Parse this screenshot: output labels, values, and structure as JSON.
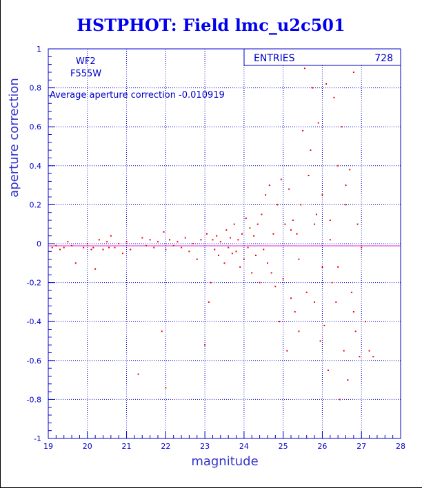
{
  "chart_data": {
    "type": "scatter",
    "title": "HSTPHOT: Field lmc_u2c501",
    "xlabel": "magnitude",
    "ylabel": "aperture correction",
    "xlim": [
      19,
      28
    ],
    "ylim": [
      -1,
      1
    ],
    "xticks": [
      "19",
      "20",
      "21",
      "22",
      "23",
      "24",
      "25",
      "26",
      "27",
      "28"
    ],
    "yticks": [
      "-1",
      "-0.8",
      "-0.6",
      "-0.4",
      "-0.2",
      "0",
      "0.2",
      "0.4",
      "0.6",
      "0.8",
      "1"
    ],
    "grid": true,
    "stats": {
      "label": "ENTRIES",
      "value": "728"
    },
    "annotations": {
      "camera": "WF2",
      "filter": "F555W",
      "average": "Average aperture correction -0.010919"
    },
    "reference_line_y": -0.0109,
    "colors": {
      "points": "#ee0000",
      "axes": "#0000cc",
      "grid": "#0000cc",
      "title": "#0000ee"
    },
    "points": [
      [
        19.1,
        -0.02
      ],
      [
        19.2,
        -0.01
      ],
      [
        19.3,
        -0.03
      ],
      [
        19.4,
        -0.02
      ],
      [
        19.5,
        0.01
      ],
      [
        19.6,
        -0.01
      ],
      [
        19.7,
        -0.1
      ],
      [
        19.9,
        -0.02
      ],
      [
        20.0,
        0.0
      ],
      [
        20.1,
        -0.03
      ],
      [
        20.15,
        -0.02
      ],
      [
        20.2,
        -0.13
      ],
      [
        20.3,
        0.02
      ],
      [
        20.4,
        -0.03
      ],
      [
        20.5,
        0.01
      ],
      [
        20.55,
        -0.02
      ],
      [
        20.6,
        0.04
      ],
      [
        20.7,
        -0.02
      ],
      [
        20.8,
        0.0
      ],
      [
        20.9,
        -0.05
      ],
      [
        21.0,
        0.01
      ],
      [
        21.1,
        -0.03
      ],
      [
        21.3,
        -0.67
      ],
      [
        21.4,
        0.03
      ],
      [
        21.5,
        -0.01
      ],
      [
        21.6,
        0.02
      ],
      [
        21.7,
        -0.02
      ],
      [
        21.8,
        0.01
      ],
      [
        21.9,
        -0.45
      ],
      [
        22.0,
        -0.74
      ],
      [
        21.95,
        0.06
      ],
      [
        22.0,
        -0.03
      ],
      [
        22.1,
        0.02
      ],
      [
        22.2,
        -0.01
      ],
      [
        22.3,
        0.01
      ],
      [
        22.4,
        -0.02
      ],
      [
        22.5,
        0.03
      ],
      [
        22.6,
        -0.04
      ],
      [
        22.7,
        0.0
      ],
      [
        22.8,
        -0.08
      ],
      [
        22.9,
        0.02
      ],
      [
        23.0,
        -0.52
      ],
      [
        23.05,
        0.05
      ],
      [
        23.1,
        -0.3
      ],
      [
        23.15,
        -0.2
      ],
      [
        23.2,
        0.02
      ],
      [
        23.25,
        -0.03
      ],
      [
        23.3,
        0.04
      ],
      [
        23.35,
        -0.06
      ],
      [
        23.4,
        0.01
      ],
      [
        23.5,
        -0.1
      ],
      [
        23.55,
        0.07
      ],
      [
        23.6,
        -0.02
      ],
      [
        23.65,
        0.03
      ],
      [
        23.7,
        -0.05
      ],
      [
        23.75,
        0.1
      ],
      [
        23.8,
        -0.04
      ],
      [
        23.85,
        0.02
      ],
      [
        23.9,
        -0.12
      ],
      [
        23.95,
        0.05
      ],
      [
        24.0,
        -0.08
      ],
      [
        24.05,
        0.13
      ],
      [
        24.1,
        -0.02
      ],
      [
        24.15,
        0.08
      ],
      [
        24.2,
        -0.15
      ],
      [
        24.25,
        0.04
      ],
      [
        24.3,
        -0.06
      ],
      [
        24.35,
        0.1
      ],
      [
        24.4,
        -0.2
      ],
      [
        24.45,
        0.15
      ],
      [
        24.5,
        -0.03
      ],
      [
        24.55,
        0.25
      ],
      [
        24.6,
        -0.1
      ],
      [
        24.65,
        0.3
      ],
      [
        24.7,
        -0.15
      ],
      [
        24.75,
        0.05
      ],
      [
        24.8,
        -0.22
      ],
      [
        24.85,
        0.2
      ],
      [
        24.9,
        -0.4
      ],
      [
        24.95,
        0.33
      ],
      [
        25.0,
        -0.18
      ],
      [
        25.05,
        0.1
      ],
      [
        25.1,
        -0.55
      ],
      [
        25.15,
        0.28
      ],
      [
        25.2,
        -0.28
      ],
      [
        25.25,
        0.12
      ],
      [
        25.3,
        -0.35
      ],
      [
        25.35,
        0.05
      ],
      [
        25.4,
        -0.45
      ],
      [
        25.45,
        0.2
      ],
      [
        25.5,
        0.58
      ],
      [
        25.55,
        0.9
      ],
      [
        25.6,
        -0.25
      ],
      [
        25.65,
        0.35
      ],
      [
        25.7,
        0.48
      ],
      [
        25.75,
        0.8
      ],
      [
        25.8,
        -0.3
      ],
      [
        25.85,
        0.15
      ],
      [
        25.9,
        0.62
      ],
      [
        25.95,
        -0.5
      ],
      [
        26.0,
        0.25
      ],
      [
        26.05,
        -0.42
      ],
      [
        26.1,
        0.82
      ],
      [
        26.15,
        -0.65
      ],
      [
        26.2,
        0.12
      ],
      [
        26.25,
        -0.2
      ],
      [
        26.3,
        0.75
      ],
      [
        26.35,
        -0.3
      ],
      [
        26.4,
        0.4
      ],
      [
        26.45,
        -0.8
      ],
      [
        26.5,
        0.6
      ],
      [
        26.55,
        -0.55
      ],
      [
        26.6,
        0.2
      ],
      [
        26.65,
        -0.7
      ],
      [
        26.7,
        0.38
      ],
      [
        26.75,
        -0.25
      ],
      [
        26.8,
        0.88
      ],
      [
        26.85,
        -0.45
      ],
      [
        26.9,
        0.1
      ],
      [
        26.95,
        -0.58
      ],
      [
        27.0,
        -0.02
      ],
      [
        27.1,
        -0.4
      ],
      [
        27.2,
        -0.55
      ],
      [
        27.3,
        -0.58
      ],
      [
        26.2,
        0.02
      ],
      [
        26.4,
        -0.12
      ],
      [
        26.6,
        0.3
      ],
      [
        26.8,
        -0.35
      ],
      [
        25.2,
        0.07
      ],
      [
        25.4,
        -0.08
      ],
      [
        25.8,
        0.1
      ],
      [
        26.0,
        -0.12
      ]
    ]
  }
}
